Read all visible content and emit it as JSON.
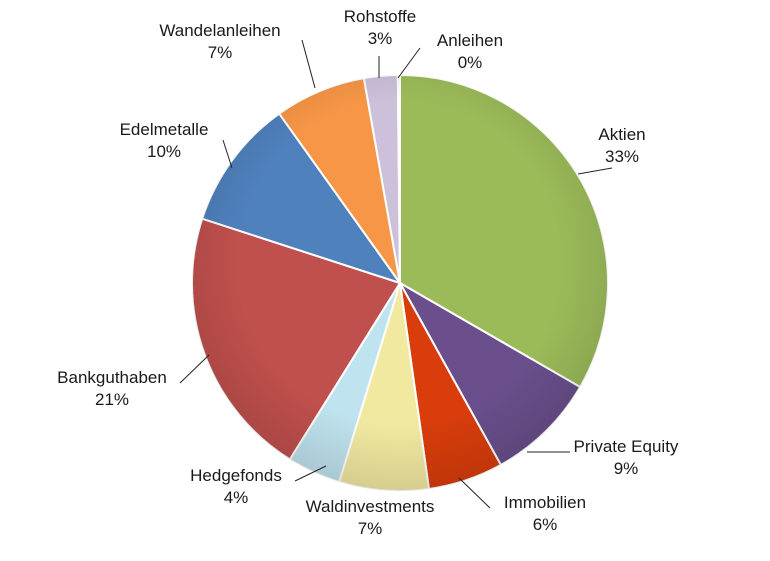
{
  "chart_data": {
    "type": "pie",
    "title": "",
    "slices": [
      {
        "label": "Aktien",
        "value": 33,
        "value_label": "33%",
        "color": "#9bbb59"
      },
      {
        "label": "Private Equity",
        "value": 9,
        "value_label": "9%",
        "color": "#6a4f8c"
      },
      {
        "label": "Immobilien",
        "value": 6,
        "value_label": "6%",
        "color": "#d93d0b"
      },
      {
        "label": "Waldinvestments",
        "value": 7,
        "value_label": "7%",
        "color": "#f2e9a1"
      },
      {
        "label": "Hedgefonds",
        "value": 4,
        "value_label": "4%",
        "color": "#bfe3ef"
      },
      {
        "label": "Bankguthaben",
        "value": 21,
        "value_label": "21%",
        "color": "#c0504d"
      },
      {
        "label": "Edelmetalle",
        "value": 10,
        "value_label": "10%",
        "color": "#4f81bd"
      },
      {
        "label": "Wandelanleihen",
        "value": 7,
        "value_label": "7%",
        "color": "#f79646"
      },
      {
        "label": "Rohstoffe",
        "value": 3,
        "value_label": "3%",
        "color": "#ccc0da"
      },
      {
        "label": "Anleihen",
        "value": 0,
        "value_label": "0%",
        "color": "#c4d41a"
      }
    ]
  }
}
